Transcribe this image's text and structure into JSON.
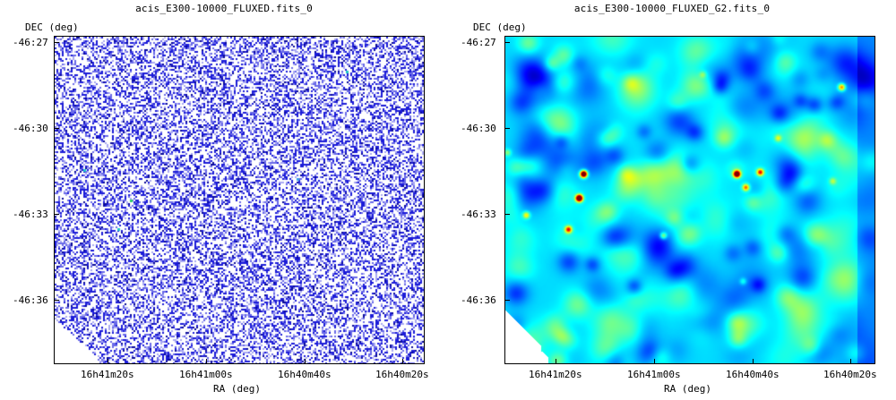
{
  "left_panel": {
    "title": "acis_E300-10000_FLUXED.fits_0",
    "y_axis_label": "DEC (deg)",
    "x_axis_label": "RA (deg)",
    "y_ticks": [
      "-46:27",
      "-46:30",
      "-46:33",
      "-46:36"
    ],
    "x_ticks": [
      "16h41m20s",
      "16h41m00s",
      "16h40m40s",
      "16h40m20s"
    ],
    "colormap": "sparse blue pixel noise on white"
  },
  "right_panel": {
    "title": "acis_E300-10000_FLUXED_G2.fits_0",
    "y_axis_label": "DEC (deg)",
    "x_axis_label": "RA (deg)",
    "y_ticks": [
      "-46:27",
      "-46:30",
      "-46:33",
      "-46:36"
    ],
    "x_ticks": [
      "16h41m20s",
      "16h41m00s",
      "16h40m40s",
      "16h40m20s"
    ],
    "colormap": "smoothed jet (blue-cyan-green-yellow-red)"
  },
  "colors": {
    "noise_blue": "#1a1ae6",
    "background": "#ffffff",
    "frame": "#000000"
  }
}
